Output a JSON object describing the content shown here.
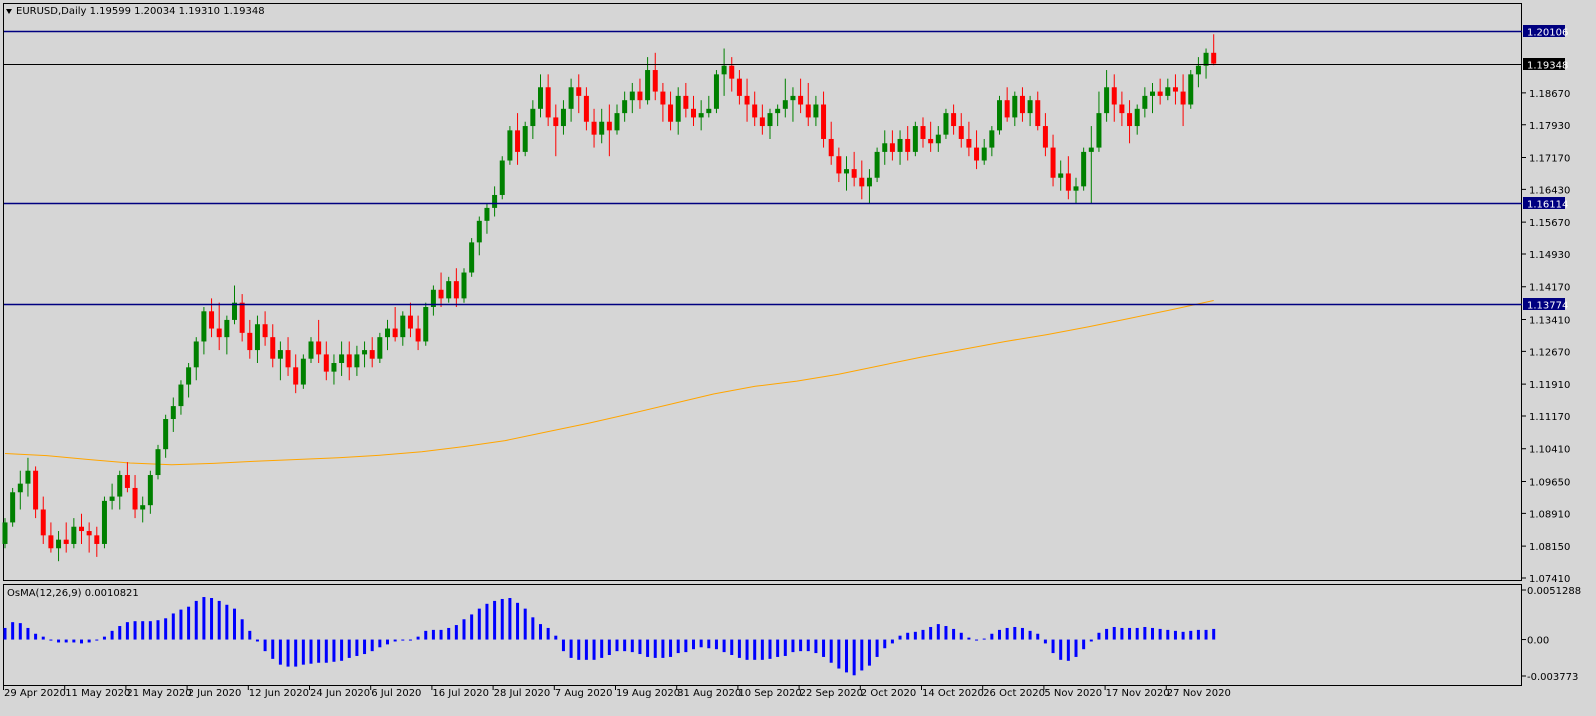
{
  "header": {
    "menu_arrow": "triangle-down-icon",
    "title": "EURUSD,Daily  1.19599 1.20034 1.19310 1.19348"
  },
  "indicator": {
    "title": "OsMA(12,26,9) 0.0010821",
    "axis_labels": [
      "0.0051288",
      "0.00",
      "-0.003773"
    ]
  },
  "price_axis": {
    "labels": [
      "1.20106",
      "1.19348",
      "1.18670",
      "1.17930",
      "1.17170",
      "1.16430",
      "1.16114",
      "1.15670",
      "1.14930",
      "1.14170",
      "1.13774",
      "1.13410",
      "1.12670",
      "1.11910",
      "1.11170",
      "1.10410",
      "1.09650",
      "1.08910",
      "1.08150",
      "1.07410"
    ]
  },
  "date_axis": {
    "labels": [
      "29 Apr 2020",
      "11 May 2020",
      "21 May 2020",
      "2 Jun 2020",
      "12 Jun 2020",
      "24 Jun 2020",
      "6 Jul 2020",
      "16 Jul 2020",
      "28 Jul 2020",
      "7 Aug 2020",
      "19 Aug 2020",
      "31 Aug 2020",
      "10 Sep 2020",
      "22 Sep 2020",
      "2 Oct 2020",
      "14 Oct 2020",
      "26 Oct 2020",
      "5 Nov 2020",
      "17 Nov 2020",
      "27 Nov 2020"
    ]
  },
  "colors": {
    "background": "#d6d6d6",
    "bull": "#008000",
    "bear": "#ff0000",
    "level_line": "#000080",
    "current_line": "#000000",
    "moving_average": "#ffa500",
    "osma": "#0000ff"
  },
  "chart_data": {
    "type": "candlestick",
    "symbol": "EURUSD",
    "timeframe": "Daily",
    "current": {
      "open": 1.19599,
      "high": 1.20034,
      "low": 1.1931,
      "close": 1.19348
    },
    "ylim": [
      1.0741,
      1.2025
    ],
    "levels": [
      {
        "value": 1.20106,
        "label": "1.20106",
        "style": "level"
      },
      {
        "value": 1.19348,
        "label": "1.19348",
        "style": "current"
      },
      {
        "value": 1.16114,
        "label": "1.16114",
        "style": "level"
      },
      {
        "value": 1.13774,
        "label": "1.13774",
        "style": "level"
      }
    ],
    "x_start_date": "2020-04-28",
    "x_end_date": "2020-11-27",
    "candles": [
      [
        "1.0820",
        "1.0880",
        "1.0810",
        "1.0870"
      ],
      [
        "1.0870",
        "1.0950",
        "1.0860",
        "1.0940"
      ],
      [
        "1.0940",
        "1.0990",
        "1.0900",
        "1.0960"
      ],
      [
        "1.0960",
        "1.1020",
        "1.0930",
        "1.0990"
      ],
      [
        "1.0990",
        "1.1000",
        "1.0880",
        "1.0900"
      ],
      [
        "1.0900",
        "1.0930",
        "1.0820",
        "1.0840"
      ],
      [
        "1.0840",
        "1.0870",
        "1.0800",
        "1.0810"
      ],
      [
        "1.0810",
        "1.0850",
        "1.0780",
        "1.0830"
      ],
      [
        "1.0830",
        "1.0870",
        "1.0800",
        "1.0820"
      ],
      [
        "1.0820",
        "1.0880",
        "1.0810",
        "1.0860"
      ],
      [
        "1.0860",
        "1.0890",
        "1.0820",
        "1.0850"
      ],
      [
        "1.0850",
        "1.0870",
        "1.0800",
        "1.0840"
      ],
      [
        "1.0840",
        "1.0860",
        "1.0790",
        "1.0820"
      ],
      [
        "1.0820",
        "1.0930",
        "1.0810",
        "1.0920"
      ],
      [
        "1.0920",
        "1.0960",
        "1.0900",
        "1.0930"
      ],
      [
        "1.0930",
        "1.0990",
        "1.0900",
        "1.0980"
      ],
      [
        "1.0980",
        "1.1010",
        "1.0940",
        "1.0950"
      ],
      [
        "1.0950",
        "1.0980",
        "1.0880",
        "1.0900"
      ],
      [
        "1.0900",
        "1.0930",
        "1.0870",
        "1.0910"
      ],
      [
        "1.0910",
        "1.0990",
        "1.0890",
        "1.0980"
      ],
      [
        "1.0980",
        "1.1050",
        "1.0970",
        "1.1040"
      ],
      [
        "1.1040",
        "1.1120",
        "1.1020",
        "1.1110"
      ],
      [
        "1.1110",
        "1.1160",
        "1.1080",
        "1.1140"
      ],
      [
        "1.1140",
        "1.1200",
        "1.1120",
        "1.1190"
      ],
      [
        "1.1190",
        "1.1240",
        "1.1160",
        "1.1230"
      ],
      [
        "1.1230",
        "1.1300",
        "1.1200",
        "1.1290"
      ],
      [
        "1.1290",
        "1.1370",
        "1.1260",
        "1.1360"
      ],
      [
        "1.1360",
        "1.1390",
        "1.1300",
        "1.1320"
      ],
      [
        "1.1320",
        "1.1380",
        "1.1270",
        "1.1300"
      ],
      [
        "1.1300",
        "1.1350",
        "1.1260",
        "1.1340"
      ],
      [
        "1.1340",
        "1.1420",
        "1.1330",
        "1.1380"
      ],
      [
        "1.1380",
        "1.1400",
        "1.1290",
        "1.1310"
      ],
      [
        "1.1310",
        "1.1340",
        "1.1250",
        "1.1270"
      ],
      [
        "1.1270",
        "1.1350",
        "1.1240",
        "1.1330"
      ],
      [
        "1.1330",
        "1.1360",
        "1.1280",
        "1.1300"
      ],
      [
        "1.1300",
        "1.1330",
        "1.1230",
        "1.1250"
      ],
      [
        "1.1250",
        "1.1290",
        "1.1200",
        "1.1270"
      ],
      [
        "1.1270",
        "1.1300",
        "1.1210",
        "1.1230"
      ],
      [
        "1.1230",
        "1.1260",
        "1.1170",
        "1.1190"
      ],
      [
        "1.1190",
        "1.1260",
        "1.1180",
        "1.1250"
      ],
      [
        "1.1250",
        "1.1300",
        "1.1240",
        "1.1290"
      ],
      [
        "1.1290",
        "1.1340",
        "1.1240",
        "1.1260"
      ],
      [
        "1.1260",
        "1.1290",
        "1.1200",
        "1.1220"
      ],
      [
        "1.1220",
        "1.1260",
        "1.1190",
        "1.1240"
      ],
      [
        "1.1240",
        "1.1290",
        "1.1210",
        "1.1260"
      ],
      [
        "1.1260",
        "1.1290",
        "1.1200",
        "1.1230"
      ],
      [
        "1.1230",
        "1.1280",
        "1.1210",
        "1.1260"
      ],
      [
        "1.1260",
        "1.1290",
        "1.1230",
        "1.1270"
      ],
      [
        "1.1270",
        "1.1300",
        "1.1230",
        "1.1250"
      ],
      [
        "1.1250",
        "1.1310",
        "1.1240",
        "1.1300"
      ],
      [
        "1.1300",
        "1.1340",
        "1.1270",
        "1.1320"
      ],
      [
        "1.1320",
        "1.1370",
        "1.1290",
        "1.1300"
      ],
      [
        "1.1300",
        "1.1360",
        "1.1280",
        "1.1350"
      ],
      [
        "1.1350",
        "1.1380",
        "1.1300",
        "1.1320"
      ],
      [
        "1.1320",
        "1.1350",
        "1.1270",
        "1.1290"
      ],
      [
        "1.1290",
        "1.1380",
        "1.1280",
        "1.1370"
      ],
      [
        "1.1370",
        "1.1420",
        "1.1350",
        "1.1410"
      ],
      [
        "1.1410",
        "1.1450",
        "1.1370",
        "1.1390"
      ],
      [
        "1.1390",
        "1.1440",
        "1.1380",
        "1.1430"
      ],
      [
        "1.1430",
        "1.1460",
        "1.1370",
        "1.1390"
      ],
      [
        "1.1390",
        "1.1460",
        "1.1380",
        "1.1450"
      ],
      [
        "1.1450",
        "1.1530",
        "1.1440",
        "1.1520"
      ],
      [
        "1.1520",
        "1.1580",
        "1.1490",
        "1.1570"
      ],
      [
        "1.1570",
        "1.1610",
        "1.1540",
        "1.1600"
      ],
      [
        "1.1600",
        "1.1650",
        "1.1580",
        "1.1630"
      ],
      [
        "1.1630",
        "1.1720",
        "1.1620",
        "1.1710"
      ],
      [
        "1.1710",
        "1.1790",
        "1.1700",
        "1.1780"
      ],
      [
        "1.1780",
        "1.1820",
        "1.1700",
        "1.1730"
      ],
      [
        "1.1730",
        "1.1800",
        "1.1720",
        "1.1790"
      ],
      [
        "1.1790",
        "1.1850",
        "1.1760",
        "1.1830"
      ],
      [
        "1.1830",
        "1.1910",
        "1.1810",
        "1.1880"
      ],
      [
        "1.1880",
        "1.1910",
        "1.1790",
        "1.1810"
      ],
      [
        "1.1810",
        "1.1840",
        "1.1720",
        "1.1790"
      ],
      [
        "1.1790",
        "1.1850",
        "1.1770",
        "1.1830"
      ],
      [
        "1.1830",
        "1.1900",
        "1.1800",
        "1.1880"
      ],
      [
        "1.1880",
        "1.1910",
        "1.1820",
        "1.1860"
      ],
      [
        "1.1860",
        "1.1880",
        "1.1780",
        "1.1800"
      ],
      [
        "1.1800",
        "1.1830",
        "1.1740",
        "1.1770"
      ],
      [
        "1.1770",
        "1.1830",
        "1.1750",
        "1.1800"
      ],
      [
        "1.1800",
        "1.1840",
        "1.1720",
        "1.1780"
      ],
      [
        "1.1780",
        "1.1840",
        "1.1770",
        "1.1820"
      ],
      [
        "1.1820",
        "1.1870",
        "1.1800",
        "1.1850"
      ],
      [
        "1.1850",
        "1.1890",
        "1.1820",
        "1.1870"
      ],
      [
        "1.1870",
        "1.1900",
        "1.1830",
        "1.1850"
      ],
      [
        "1.1850",
        "1.1950",
        "1.1840",
        "1.1920"
      ],
      [
        "1.1920",
        "1.1960",
        "1.1850",
        "1.1870"
      ],
      [
        "1.1870",
        "1.1890",
        "1.1800",
        "1.1840"
      ],
      [
        "1.1840",
        "1.1870",
        "1.1780",
        "1.1800"
      ],
      [
        "1.1800",
        "1.1880",
        "1.1770",
        "1.1860"
      ],
      [
        "1.1860",
        "1.1890",
        "1.1810",
        "1.1830"
      ],
      [
        "1.1830",
        "1.1860",
        "1.1790",
        "1.1810"
      ],
      [
        "1.1810",
        "1.1850",
        "1.1780",
        "1.1820"
      ],
      [
        "1.1820",
        "1.1860",
        "1.1810",
        "1.1830"
      ],
      [
        "1.1830",
        "1.1920",
        "1.1820",
        "1.1910"
      ],
      [
        "1.1910",
        "1.1970",
        "1.1860",
        "1.1930"
      ],
      [
        "1.1930",
        "1.1950",
        "1.1870",
        "1.1900"
      ],
      [
        "1.1900",
        "1.1920",
        "1.1840",
        "1.1860"
      ],
      [
        "1.1860",
        "1.1900",
        "1.1800",
        "1.1840"
      ],
      [
        "1.1840",
        "1.1870",
        "1.1790",
        "1.1810"
      ],
      [
        "1.1810",
        "1.1840",
        "1.1770",
        "1.1790"
      ],
      [
        "1.1790",
        "1.1830",
        "1.1760",
        "1.1820"
      ],
      [
        "1.1820",
        "1.1840",
        "1.1790",
        "1.1830"
      ],
      [
        "1.1830",
        "1.1900",
        "1.1810",
        "1.1850"
      ],
      [
        "1.1850",
        "1.1880",
        "1.1800",
        "1.1860"
      ],
      [
        "1.1860",
        "1.1900",
        "1.1820",
        "1.1840"
      ],
      [
        "1.1840",
        "1.1890",
        "1.1790",
        "1.1810"
      ],
      [
        "1.1810",
        "1.1860",
        "1.1790",
        "1.1840"
      ],
      [
        "1.1840",
        "1.1870",
        "1.1740",
        "1.1760"
      ],
      [
        "1.1760",
        "1.1800",
        "1.1700",
        "1.1720"
      ],
      [
        "1.1720",
        "1.1740",
        "1.1660",
        "1.1680"
      ],
      [
        "1.1680",
        "1.1720",
        "1.1640",
        "1.1690"
      ],
      [
        "1.1690",
        "1.1730",
        "1.1650",
        "1.1670"
      ],
      [
        "1.1670",
        "1.1710",
        "1.1620",
        "1.1650"
      ],
      [
        "1.1650",
        "1.1690",
        "1.1610",
        "1.1670"
      ],
      [
        "1.1670",
        "1.1740",
        "1.1660",
        "1.1730"
      ],
      [
        "1.1730",
        "1.1780",
        "1.1700",
        "1.1750"
      ],
      [
        "1.1750",
        "1.1780",
        "1.1710",
        "1.1730"
      ],
      [
        "1.1730",
        "1.1780",
        "1.1700",
        "1.1760"
      ],
      [
        "1.1760",
        "1.1790",
        "1.1710",
        "1.1730"
      ],
      [
        "1.1730",
        "1.1800",
        "1.1720",
        "1.1790"
      ],
      [
        "1.1790",
        "1.1810",
        "1.1740",
        "1.1760"
      ],
      [
        "1.1760",
        "1.1800",
        "1.1730",
        "1.1750"
      ],
      [
        "1.1750",
        "1.1790",
        "1.1730",
        "1.1770"
      ],
      [
        "1.1770",
        "1.1830",
        "1.1760",
        "1.1820"
      ],
      [
        "1.1820",
        "1.1840",
        "1.1770",
        "1.1790"
      ],
      [
        "1.1790",
        "1.1820",
        "1.1740",
        "1.1760"
      ],
      [
        "1.1760",
        "1.1800",
        "1.1720",
        "1.1740"
      ],
      [
        "1.1740",
        "1.1780",
        "1.1690",
        "1.1710"
      ],
      [
        "1.1710",
        "1.1760",
        "1.1700",
        "1.1740"
      ],
      [
        "1.1740",
        "1.1790",
        "1.1720",
        "1.1780"
      ],
      [
        "1.1780",
        "1.1860",
        "1.1770",
        "1.1850"
      ],
      [
        "1.1850",
        "1.1880",
        "1.1800",
        "1.1810"
      ],
      [
        "1.1810",
        "1.1870",
        "1.1790",
        "1.1860"
      ],
      [
        "1.1860",
        "1.1880",
        "1.1800",
        "1.1820"
      ],
      [
        "1.1820",
        "1.1860",
        "1.1790",
        "1.1850"
      ],
      [
        "1.1850",
        "1.1870",
        "1.1780",
        "1.1790"
      ],
      [
        "1.1790",
        "1.1820",
        "1.1720",
        "1.1740"
      ],
      [
        "1.1740",
        "1.1770",
        "1.1650",
        "1.1670"
      ],
      [
        "1.1670",
        "1.1710",
        "1.1640",
        "1.1680"
      ],
      [
        "1.1680",
        "1.1720",
        "1.1620",
        "1.1640"
      ],
      [
        "1.1640",
        "1.1670",
        "1.1610",
        "1.1650"
      ],
      [
        "1.1650",
        "1.1740",
        "1.1640",
        "1.1730"
      ],
      [
        "1.1730",
        "1.1790",
        "1.1610",
        "1.1740"
      ],
      [
        "1.1740",
        "1.1870",
        "1.1730",
        "1.1820"
      ],
      [
        "1.1820",
        "1.1920",
        "1.1800",
        "1.1880"
      ],
      [
        "1.1880",
        "1.1910",
        "1.1800",
        "1.1840"
      ],
      [
        "1.1840",
        "1.1870",
        "1.1790",
        "1.1820"
      ],
      [
        "1.1820",
        "1.1850",
        "1.1750",
        "1.1790"
      ],
      [
        "1.1790",
        "1.1840",
        "1.1770",
        "1.1830"
      ],
      [
        "1.1830",
        "1.1880",
        "1.1810",
        "1.1860"
      ],
      [
        "1.1860",
        "1.1890",
        "1.1820",
        "1.1870"
      ],
      [
        "1.1870",
        "1.1900",
        "1.1840",
        "1.1860"
      ],
      [
        "1.1860",
        "1.1900",
        "1.1850",
        "1.1880"
      ],
      [
        "1.1880",
        "1.1910",
        "1.1840",
        "1.1870"
      ],
      [
        "1.1870",
        "1.1910",
        "1.1790",
        "1.1840"
      ],
      [
        "1.1840",
        "1.1920",
        "1.1830",
        "1.1910"
      ],
      [
        "1.1910",
        "1.1950",
        "1.1880",
        "1.1930"
      ],
      [
        "1.1930",
        "1.1970",
        "1.1900",
        "1.1960"
      ],
      [
        "1.1960",
        "1.2003",
        "1.1931",
        "1.1935"
      ]
    ],
    "moving_average": {
      "color": "#ffa500",
      "values": [
        1.103,
        1.1025,
        1.1016,
        1.1008,
        1.1004,
        1.1007,
        1.1012,
        1.1016,
        1.102,
        1.1026,
        1.1034,
        1.1046,
        1.106,
        1.108,
        1.11,
        1.1122,
        1.1145,
        1.1168,
        1.1186,
        1.1198,
        1.1214,
        1.1234,
        1.1254,
        1.1272,
        1.129,
        1.1306,
        1.1324,
        1.1344,
        1.1364,
        1.1385
      ]
    },
    "osma": {
      "name": "OsMA(12,26,9)",
      "value": 0.0010821,
      "ylim": [
        -0.003773,
        0.0051288
      ],
      "values": [
        0.0012,
        0.0018,
        0.0017,
        0.0012,
        0.0006,
        0.0003,
        -0.0001,
        -0.0003,
        -0.0003,
        -0.0003,
        -0.0004,
        -0.0003,
        -0.0001,
        0.0003,
        0.0009,
        0.0014,
        0.0018,
        0.0019,
        0.0019,
        0.0019,
        0.002,
        0.0022,
        0.0027,
        0.0031,
        0.0034,
        0.004,
        0.0044,
        0.0043,
        0.004,
        0.0036,
        0.0032,
        0.0021,
        0.0009,
        -0.0002,
        -0.0012,
        -0.002,
        -0.0026,
        -0.0028,
        -0.0028,
        -0.0026,
        -0.0025,
        -0.0024,
        -0.0024,
        -0.0023,
        -0.0022,
        -0.0019,
        -0.0017,
        -0.0015,
        -0.0012,
        -0.0008,
        -0.0005,
        -0.0002,
        -0.0001,
        -0.0001,
        0.0003,
        0.0009,
        0.001,
        0.001,
        0.0012,
        0.0015,
        0.0021,
        0.0026,
        0.0032,
        0.0037,
        0.004,
        0.0042,
        0.0043,
        0.0038,
        0.0032,
        0.0023,
        0.0016,
        0.0012,
        0.0004,
        -0.0012,
        -0.0019,
        -0.0021,
        -0.0021,
        -0.0021,
        -0.0019,
        -0.0016,
        -0.0012,
        -0.0012,
        -0.0013,
        -0.0015,
        -0.0018,
        -0.0019,
        -0.0019,
        -0.0018,
        -0.0014,
        -0.0013,
        -0.001,
        -0.0008,
        -0.0009,
        -0.001,
        -0.0013,
        -0.0016,
        -0.0019,
        -0.0021,
        -0.0021,
        -0.0021,
        -0.002,
        -0.0018,
        -0.0017,
        -0.0013,
        -0.0012,
        -0.0012,
        -0.0014,
        -0.0018,
        -0.0024,
        -0.003,
        -0.0034,
        -0.0037,
        -0.0032,
        -0.0027,
        -0.0018,
        -0.0009,
        -0.0004,
        0.0004,
        0.0007,
        0.0008,
        0.001,
        0.0013,
        0.0016,
        0.0014,
        0.0011,
        0.0007,
        0.0002,
        -0.0001,
        0.0001,
        0.0006,
        0.001,
        0.0012,
        0.0013,
        0.0012,
        0.0009,
        0.0006,
        -0.0004,
        -0.0014,
        -0.0021,
        -0.0022,
        -0.0018,
        -0.001,
        -0.0002,
        0.0007,
        0.0011,
        0.0013,
        0.0012,
        0.0012,
        0.0012,
        0.0013,
        0.0012,
        0.0011,
        0.001,
        0.0009,
        0.0008,
        0.0009,
        0.001,
        0.001,
        0.0011
      ]
    }
  }
}
